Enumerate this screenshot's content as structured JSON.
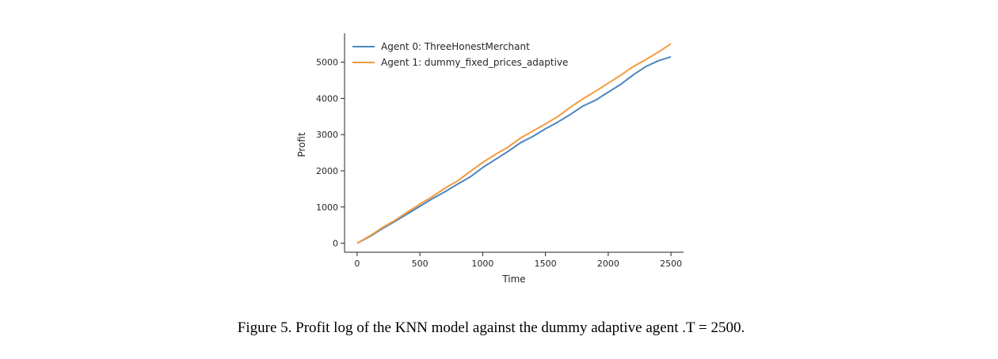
{
  "chart_data": {
    "type": "line",
    "xlabel": "Time",
    "ylabel": "Profit",
    "xlim": [
      -100,
      2600
    ],
    "ylim": [
      -250,
      5800
    ],
    "xticks": [
      0,
      500,
      1000,
      1500,
      2000,
      2500
    ],
    "yticks": [
      0,
      1000,
      2000,
      3000,
      4000,
      5000
    ],
    "legend_position": "top-left",
    "grid": false,
    "series": [
      {
        "name": "Agent 0: ThreeHonestMerchant",
        "color": "#4c86bf",
        "x": [
          0,
          100,
          200,
          300,
          400,
          500,
          600,
          700,
          800,
          900,
          1000,
          1100,
          1200,
          1300,
          1400,
          1500,
          1600,
          1700,
          1800,
          1900,
          2000,
          2100,
          2200,
          2300,
          2400,
          2500
        ],
        "y": [
          0,
          180,
          400,
          600,
          810,
          1020,
          1230,
          1420,
          1630,
          1830,
          2090,
          2310,
          2530,
          2770,
          2950,
          3160,
          3350,
          3560,
          3790,
          3950,
          4170,
          4390,
          4650,
          4880,
          5040,
          5150
        ]
      },
      {
        "name": "Agent 1: dummy_fixed_prices_adaptive",
        "color": "#f39b3f",
        "x": [
          0,
          100,
          200,
          300,
          400,
          500,
          600,
          700,
          800,
          900,
          1000,
          1100,
          1200,
          1300,
          1400,
          1500,
          1600,
          1700,
          1800,
          1900,
          2000,
          2100,
          2200,
          2300,
          2400,
          2500
        ],
        "y": [
          0,
          200,
          430,
          630,
          860,
          1080,
          1290,
          1520,
          1720,
          1980,
          2230,
          2450,
          2650,
          2900,
          3100,
          3290,
          3500,
          3760,
          3990,
          4200,
          4420,
          4640,
          4880,
          5070,
          5280,
          5510
        ]
      }
    ]
  },
  "caption": "Figure 5. Profit log of the KNN model against the dummy adaptive agent .T = 2500."
}
